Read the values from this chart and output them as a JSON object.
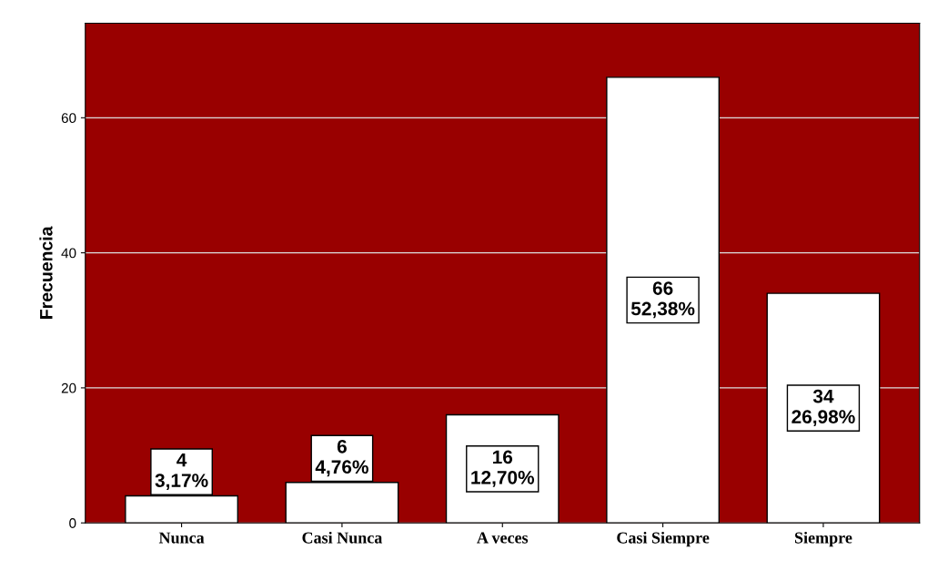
{
  "chart_data": {
    "type": "bar",
    "ylabel": "Frecuencia",
    "categories": [
      "Nunca",
      "Casi Nunca",
      "A veces",
      "Casi Siempre",
      "Siempre"
    ],
    "values": [
      4,
      6,
      16,
      66,
      34
    ],
    "value_labels": [
      "4\n3,17%",
      "6\n4,76%",
      "16\n12,70%",
      "66\n52,38%",
      "34\n26,98%"
    ],
    "color": "#ffffff",
    "ylim": [
      0,
      74
    ],
    "yticks": [
      0,
      20,
      40,
      60
    ],
    "grid": "y"
  }
}
